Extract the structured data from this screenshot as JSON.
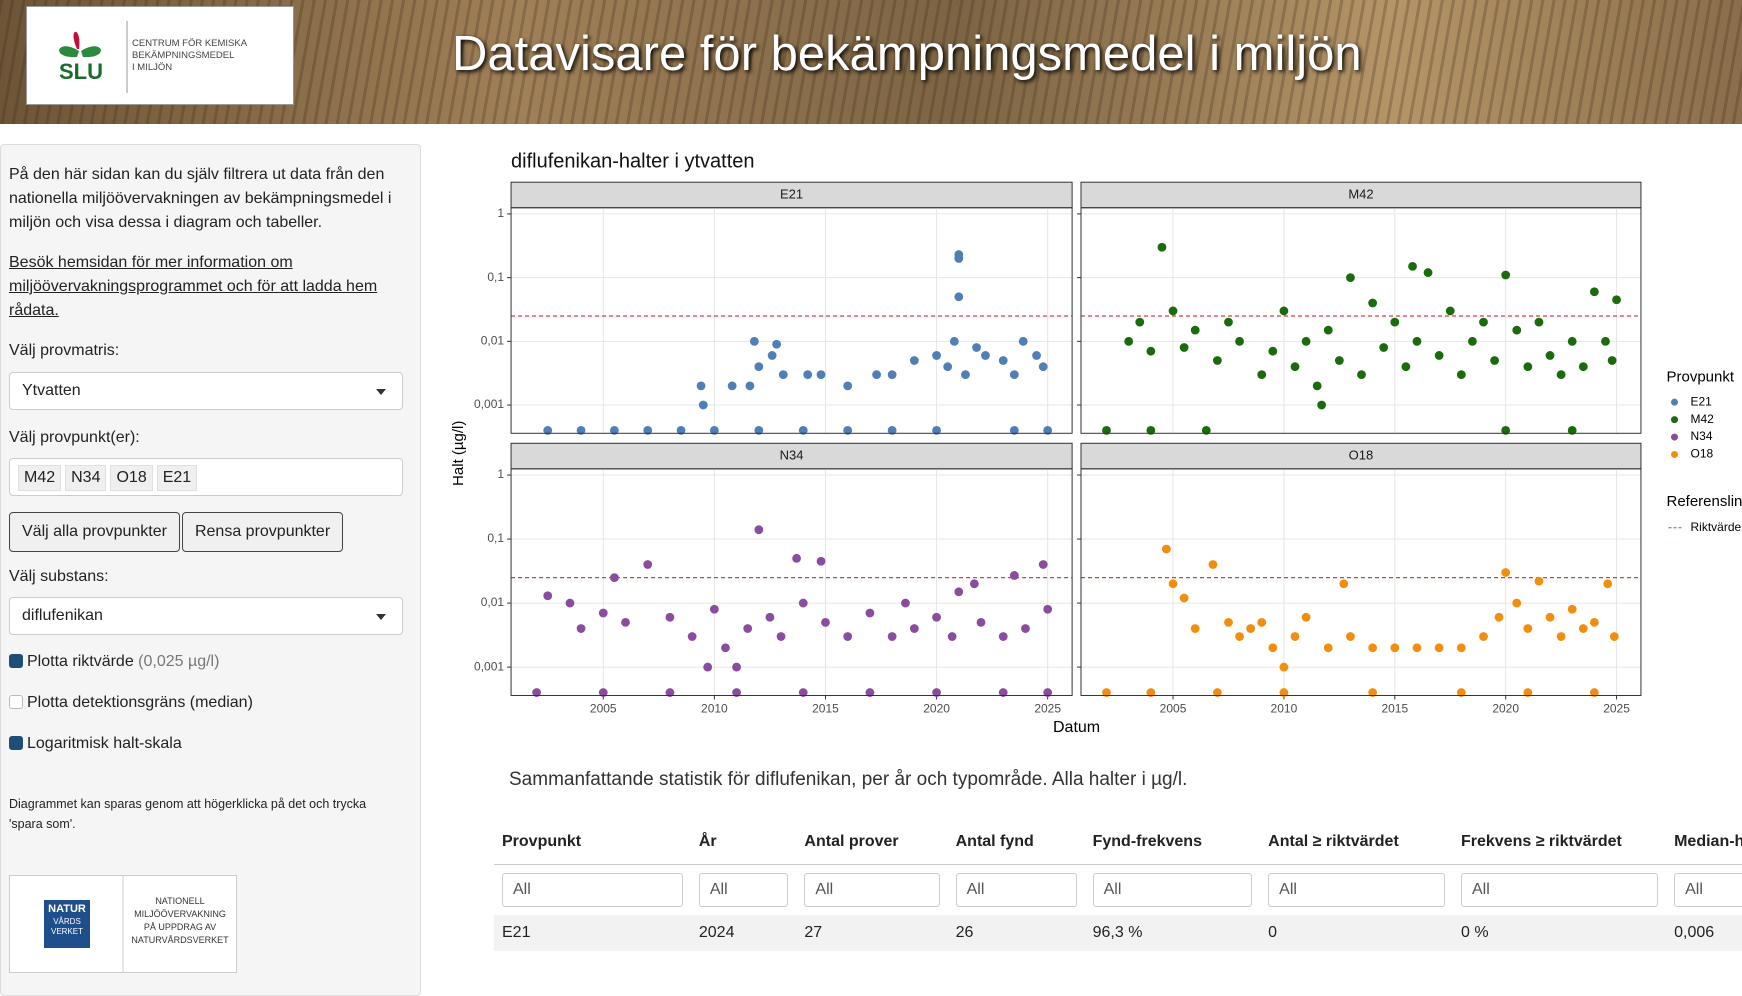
{
  "header": {
    "logo_text": "SLU",
    "logo_org": [
      "CENTRUM FÖR KEMISKA",
      "BEKÄMPNINGSMEDEL",
      "I MILJÖN"
    ],
    "title": "Datavisare för bekämpningsmedel i miljön"
  },
  "sidebar": {
    "intro": "På den här sidan kan du själv filtrera ut data från den nationella miljöövervakningen av bekämpningsmedel i miljön och visa dessa i diagram och tabeller.",
    "link": "Besök hemsidan för mer information om miljöövervakningsprogrammet och för att ladda hem rådata.",
    "matrix_label": "Välj provmatris:",
    "matrix_value": "Ytvatten",
    "points_label": "Välj provpunkt(er):",
    "points_selected": [
      "M42",
      "N34",
      "O18",
      "E21"
    ],
    "btn_all": "Välj alla provpunkter",
    "btn_clear": "Rensa provpunkter",
    "substance_label": "Välj substans:",
    "substance_value": "diflufenikan",
    "chk_ref": "Plotta riktvärde",
    "chk_ref_note": "(0,025 µg/l)",
    "chk_det": "Plotta detektionsgräns (median)",
    "chk_log": "Logaritmisk halt-skala",
    "save_note": "Diagrammet kan sparas genom att högerklicka på det och trycka 'spara som'.",
    "footer_logo": [
      "NATUR",
      "VÅRDS",
      "VERKET"
    ],
    "footer_text": [
      "NATIONELL",
      "MILJÖÖVERVAKNING",
      "PÅ UPPDRAG AV",
      "NATURVÅRDSVERKET"
    ]
  },
  "chart_data": {
    "type": "scatter",
    "title": "diflufenikan-halter i ytvatten",
    "x_label": "Datum",
    "y_label": "Halt (µg/l)",
    "log_y": true,
    "grid": true,
    "xlim": [
      2000.85,
      2026.1
    ],
    "xticks": [
      2005,
      2010,
      2015,
      2020,
      2025
    ],
    "ylim": [
      0.00036,
      1.25
    ],
    "yticks": [
      {
        "value": 0.001,
        "label": "0,001"
      },
      {
        "value": 0.01,
        "label": "0,01"
      },
      {
        "value": 0.1,
        "label": "0,1"
      },
      1
    ],
    "legend_title": "Provpunkt",
    "reference_legend_title": "Referenslinjer",
    "reference": {
      "name": "Riktvärde",
      "value": 0.025,
      "color": "#e0393e"
    },
    "panels": [
      {
        "name": "E21",
        "color": "#4f7fb4",
        "x": [
          2002.5,
          2004,
          2005.5,
          2007,
          2008.5,
          2010,
          2012,
          2014,
          2016,
          2018,
          2020,
          2023.5,
          2025,
          2009.4,
          2009.5,
          2010.8,
          2011.6,
          2011.8,
          2012,
          2012.6,
          2012.8,
          2013.1,
          2014.2,
          2014.8,
          2016,
          2017.3,
          2018,
          2019,
          2020,
          2020.5,
          2020.8,
          2021,
          2021,
          2021,
          2021.3,
          2021.8,
          2022.2,
          2023,
          2023.5,
          2023.9,
          2024.5,
          2024.8
        ],
        "values": [
          0.0004,
          0.0004,
          0.0004,
          0.0004,
          0.0004,
          0.0004,
          0.0004,
          0.0004,
          0.0004,
          0.0004,
          0.0004,
          0.0004,
          0.0004,
          0.002,
          0.001,
          0.002,
          0.002,
          0.01,
          0.004,
          0.006,
          0.009,
          0.003,
          0.003,
          0.003,
          0.002,
          0.003,
          0.003,
          0.005,
          0.006,
          0.004,
          0.01,
          0.2,
          0.23,
          0.05,
          0.003,
          0.008,
          0.006,
          0.005,
          0.003,
          0.01,
          0.006,
          0.004
        ]
      },
      {
        "name": "M42",
        "color": "#1a6b0c",
        "x": [
          2002,
          2004,
          2006.5,
          2020,
          2023,
          2003,
          2003.5,
          2004,
          2004.5,
          2005,
          2005.5,
          2006,
          2007,
          2007.5,
          2008,
          2009,
          2009.5,
          2010,
          2010.5,
          2011,
          2011.5,
          2011.7,
          2012,
          2012.5,
          2013,
          2013.5,
          2014,
          2014.5,
          2015,
          2015.5,
          2015.8,
          2016,
          2016.5,
          2017,
          2017.5,
          2018,
          2018.5,
          2019,
          2019.5,
          2020,
          2020.5,
          2021,
          2021.5,
          2022,
          2022.5,
          2023,
          2023.5,
          2024,
          2024.5,
          2024.8,
          2025
        ],
        "values": [
          0.0004,
          0.0004,
          0.0004,
          0.0004,
          0.0004,
          0.01,
          0.02,
          0.007,
          0.3,
          0.03,
          0.008,
          0.015,
          0.005,
          0.02,
          0.01,
          0.003,
          0.007,
          0.03,
          0.004,
          0.01,
          0.002,
          0.001,
          0.015,
          0.005,
          0.1,
          0.003,
          0.04,
          0.008,
          0.02,
          0.004,
          0.15,
          0.01,
          0.12,
          0.006,
          0.03,
          0.003,
          0.01,
          0.02,
          0.005,
          0.11,
          0.015,
          0.004,
          0.02,
          0.006,
          0.003,
          0.01,
          0.004,
          0.06,
          0.01,
          0.005,
          0.045
        ]
      },
      {
        "name": "N34",
        "color": "#8a4c9e",
        "x": [
          2002,
          2005,
          2008,
          2011,
          2014,
          2017,
          2020,
          2023,
          2025,
          2002.5,
          2003.5,
          2004,
          2005,
          2005.5,
          2006,
          2007,
          2008,
          2009,
          2009.7,
          2010,
          2010.5,
          2011,
          2011.5,
          2012,
          2012.5,
          2013,
          2013.7,
          2014,
          2014.8,
          2015,
          2016,
          2017,
          2018,
          2018.6,
          2019,
          2020,
          2020.7,
          2021,
          2021.7,
          2022,
          2023,
          2023.5,
          2024,
          2024.8,
          2025
        ],
        "values": [
          0.0004,
          0.0004,
          0.0004,
          0.0004,
          0.0004,
          0.0004,
          0.0004,
          0.0004,
          0.0004,
          0.013,
          0.01,
          0.004,
          0.007,
          0.025,
          0.005,
          0.04,
          0.006,
          0.003,
          0.001,
          0.008,
          0.002,
          0.001,
          0.004,
          0.14,
          0.006,
          0.003,
          0.05,
          0.01,
          0.045,
          0.005,
          0.003,
          0.007,
          0.003,
          0.01,
          0.004,
          0.006,
          0.003,
          0.015,
          0.02,
          0.005,
          0.003,
          0.027,
          0.004,
          0.04,
          0.008
        ]
      },
      {
        "name": "O18",
        "color": "#f28e0f",
        "x": [
          2002,
          2004,
          2007,
          2010,
          2014,
          2018,
          2021,
          2024,
          2004.7,
          2005,
          2005.5,
          2006,
          2006.8,
          2007.5,
          2008,
          2008.5,
          2009,
          2009.5,
          2010,
          2010.5,
          2011,
          2012,
          2012.7,
          2013,
          2014,
          2015,
          2016,
          2017,
          2018,
          2019,
          2019.7,
          2020,
          2020.5,
          2021,
          2021.5,
          2022,
          2022.5,
          2023,
          2023.5,
          2024,
          2024.6,
          2024.9
        ],
        "values": [
          0.0004,
          0.0004,
          0.0004,
          0.0004,
          0.0004,
          0.0004,
          0.0004,
          0.0004,
          0.07,
          0.02,
          0.012,
          0.004,
          0.04,
          0.005,
          0.003,
          0.004,
          0.005,
          0.002,
          0.001,
          0.003,
          0.006,
          0.002,
          0.02,
          0.003,
          0.002,
          0.002,
          0.002,
          0.002,
          0.002,
          0.003,
          0.006,
          0.03,
          0.01,
          0.004,
          0.022,
          0.006,
          0.003,
          0.008,
          0.004,
          0.005,
          0.02,
          0.003
        ]
      }
    ]
  },
  "table": {
    "title": "Sammanfattande statistik för diflufenikan, per år och typområde. Alla halter i µg/l.",
    "headers": [
      "Provpunkt",
      "År",
      "Antal prover",
      "Antal fynd",
      "Fynd-frekvens",
      "Antal ≥ riktvärdet",
      "Frekvens ≥ riktvärdet",
      "Median-halt"
    ],
    "filter_placeholder": "All",
    "rows": [
      [
        "E21",
        2024,
        27,
        26,
        "96,3 %",
        0,
        "0 %",
        "0,006"
      ]
    ]
  }
}
